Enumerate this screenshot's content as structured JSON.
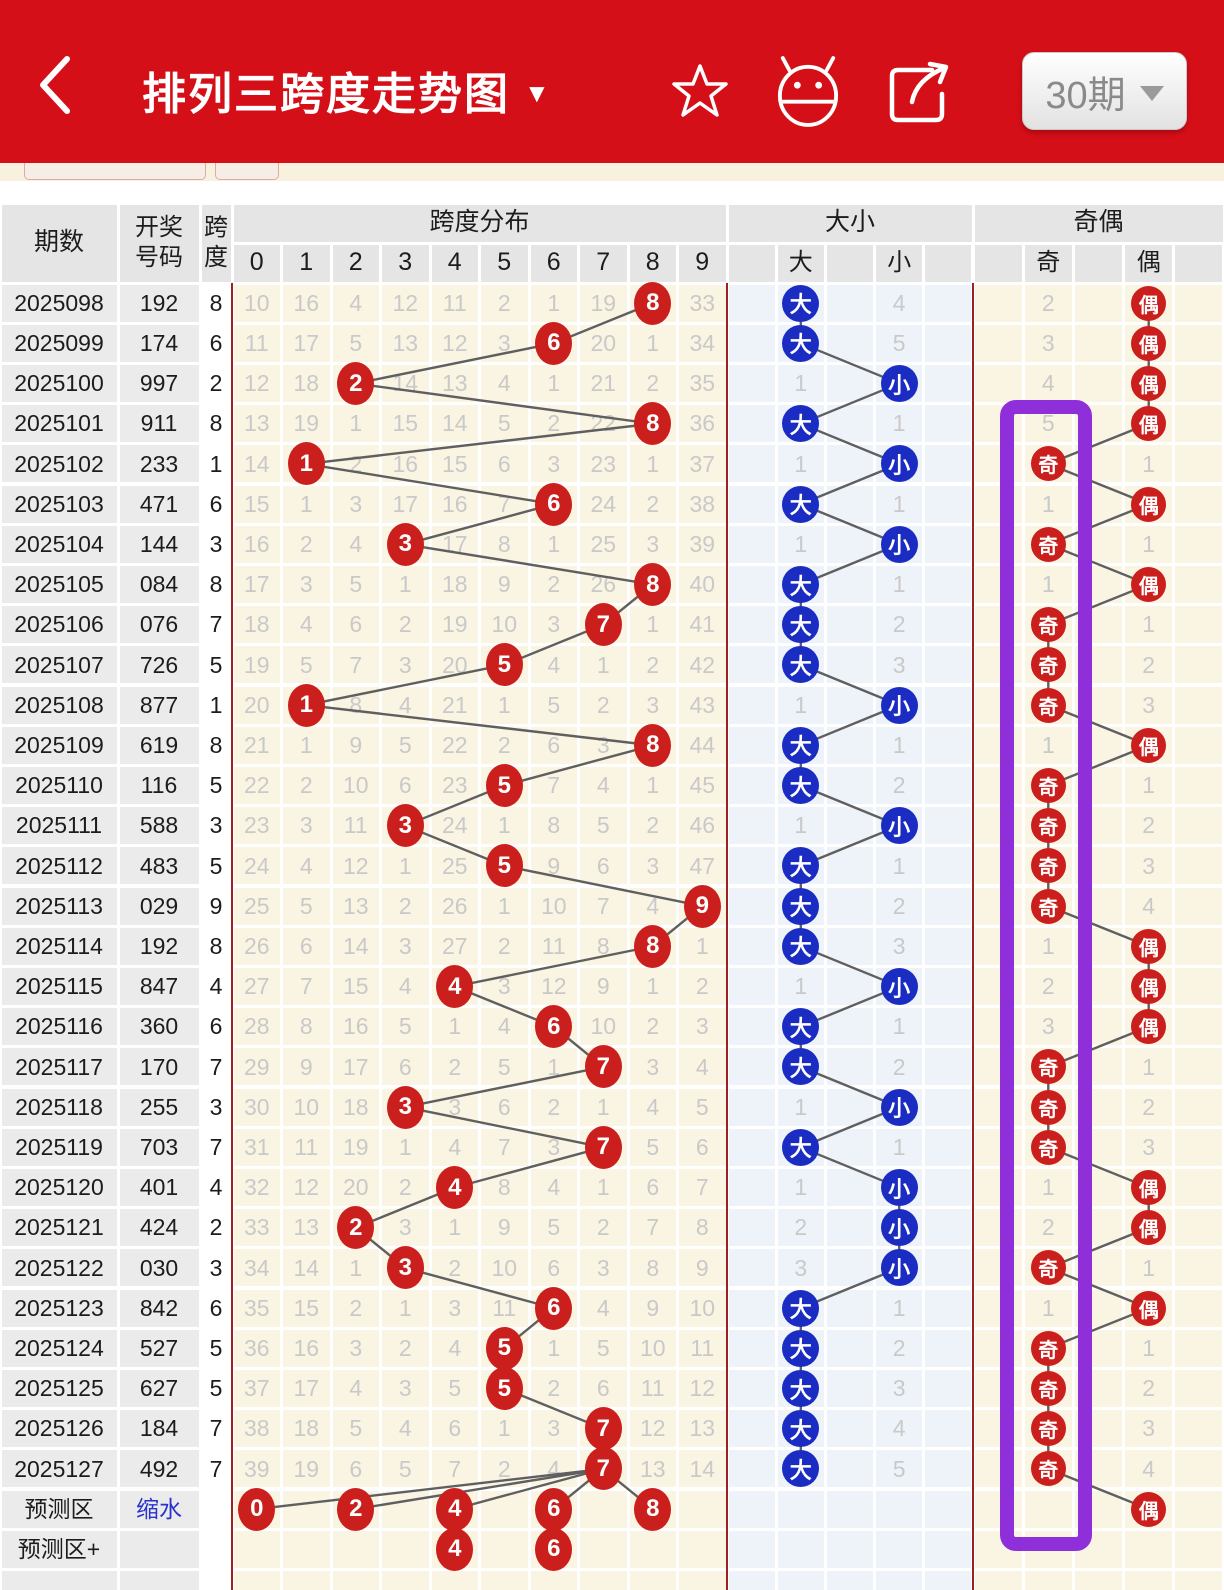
{
  "header": {
    "title": "排列三跨度走势图",
    "title_caret": "▼",
    "periods_button": {
      "label": "30期"
    },
    "icons": [
      "back-icon",
      "favorite-star-icon",
      "android-icon",
      "share-icon"
    ]
  },
  "table_header": {
    "period": "期数",
    "number_lines": [
      "开奖",
      "号码"
    ],
    "span_lines": [
      "跨",
      "度"
    ],
    "dist_group": "跨度分布",
    "size_group": "大小",
    "parity_group": "奇偶",
    "dist_labels": [
      "0",
      "1",
      "2",
      "3",
      "4",
      "5",
      "6",
      "7",
      "8",
      "9"
    ],
    "size_labels": [
      "",
      "大",
      "",
      "小",
      ""
    ],
    "parity_labels": [
      "",
      "奇",
      "",
      "偶",
      ""
    ]
  },
  "rows": [
    {
      "period": "2025098",
      "number": "192",
      "span": 8,
      "dist": [
        10,
        16,
        4,
        12,
        11,
        2,
        1,
        19,
        8,
        33
      ],
      "size_hit": "big",
      "size_miss": 4,
      "parity_hit": "even",
      "parity_miss": 2
    },
    {
      "period": "2025099",
      "number": "174",
      "span": 6,
      "dist": [
        11,
        17,
        5,
        13,
        12,
        3,
        6,
        20,
        1,
        34
      ],
      "size_hit": "big",
      "size_miss": 5,
      "parity_hit": "even",
      "parity_miss": 3
    },
    {
      "period": "2025100",
      "number": "997",
      "span": 2,
      "dist": [
        12,
        18,
        2,
        14,
        13,
        4,
        1,
        21,
        2,
        35
      ],
      "size_hit": "small",
      "size_miss": 1,
      "parity_hit": "even",
      "parity_miss": 4
    },
    {
      "period": "2025101",
      "number": "911",
      "span": 8,
      "dist": [
        13,
        19,
        1,
        15,
        14,
        5,
        2,
        22,
        8,
        36
      ],
      "size_hit": "big",
      "size_miss": 1,
      "parity_hit": "even",
      "parity_miss": 5
    },
    {
      "period": "2025102",
      "number": "233",
      "span": 1,
      "dist": [
        14,
        1,
        2,
        16,
        15,
        6,
        3,
        23,
        1,
        37
      ],
      "size_hit": "small",
      "size_miss": 1,
      "parity_hit": "odd",
      "parity_miss": 1
    },
    {
      "period": "2025103",
      "number": "471",
      "span": 6,
      "dist": [
        15,
        1,
        3,
        17,
        16,
        7,
        6,
        24,
        2,
        38
      ],
      "size_hit": "big",
      "size_miss": 1,
      "parity_hit": "even",
      "parity_miss": 1
    },
    {
      "period": "2025104",
      "number": "144",
      "span": 3,
      "dist": [
        16,
        2,
        4,
        3,
        17,
        8,
        1,
        25,
        3,
        39
      ],
      "size_hit": "small",
      "size_miss": 1,
      "parity_hit": "odd",
      "parity_miss": 1
    },
    {
      "period": "2025105",
      "number": "084",
      "span": 8,
      "dist": [
        17,
        3,
        5,
        1,
        18,
        9,
        2,
        26,
        8,
        40
      ],
      "size_hit": "big",
      "size_miss": 1,
      "parity_hit": "even",
      "parity_miss": 1
    },
    {
      "period": "2025106",
      "number": "076",
      "span": 7,
      "dist": [
        18,
        4,
        6,
        2,
        19,
        10,
        3,
        7,
        1,
        41
      ],
      "size_hit": "big",
      "size_miss": 2,
      "parity_hit": "odd",
      "parity_miss": 1
    },
    {
      "period": "2025107",
      "number": "726",
      "span": 5,
      "dist": [
        19,
        5,
        7,
        3,
        20,
        5,
        4,
        1,
        2,
        42
      ],
      "size_hit": "big",
      "size_miss": 3,
      "parity_hit": "odd",
      "parity_miss": 2
    },
    {
      "period": "2025108",
      "number": "877",
      "span": 1,
      "dist": [
        20,
        1,
        8,
        4,
        21,
        1,
        5,
        2,
        3,
        43
      ],
      "size_hit": "small",
      "size_miss": 1,
      "parity_hit": "odd",
      "parity_miss": 3
    },
    {
      "period": "2025109",
      "number": "619",
      "span": 8,
      "dist": [
        21,
        1,
        9,
        5,
        22,
        2,
        6,
        3,
        8,
        44
      ],
      "size_hit": "big",
      "size_miss": 1,
      "parity_hit": "even",
      "parity_miss": 1
    },
    {
      "period": "2025110",
      "number": "116",
      "span": 5,
      "dist": [
        22,
        2,
        10,
        6,
        23,
        5,
        7,
        4,
        1,
        45
      ],
      "size_hit": "big",
      "size_miss": 2,
      "parity_hit": "odd",
      "parity_miss": 1
    },
    {
      "period": "2025111",
      "number": "588",
      "span": 3,
      "dist": [
        23,
        3,
        11,
        3,
        24,
        1,
        8,
        5,
        2,
        46
      ],
      "size_hit": "small",
      "size_miss": 1,
      "parity_hit": "odd",
      "parity_miss": 2
    },
    {
      "period": "2025112",
      "number": "483",
      "span": 5,
      "dist": [
        24,
        4,
        12,
        1,
        25,
        5,
        9,
        6,
        3,
        47
      ],
      "size_hit": "big",
      "size_miss": 1,
      "parity_hit": "odd",
      "parity_miss": 3
    },
    {
      "period": "2025113",
      "number": "029",
      "span": 9,
      "dist": [
        25,
        5,
        13,
        2,
        26,
        1,
        10,
        7,
        4,
        9
      ],
      "size_hit": "big",
      "size_miss": 2,
      "parity_hit": "odd",
      "parity_miss": 4
    },
    {
      "period": "2025114",
      "number": "192",
      "span": 8,
      "dist": [
        26,
        6,
        14,
        3,
        27,
        2,
        11,
        8,
        8,
        1
      ],
      "size_hit": "big",
      "size_miss": 3,
      "parity_hit": "even",
      "parity_miss": 1
    },
    {
      "period": "2025115",
      "number": "847",
      "span": 4,
      "dist": [
        27,
        7,
        15,
        4,
        4,
        3,
        12,
        9,
        1,
        2
      ],
      "size_hit": "small",
      "size_miss": 1,
      "parity_hit": "even",
      "parity_miss": 2
    },
    {
      "period": "2025116",
      "number": "360",
      "span": 6,
      "dist": [
        28,
        8,
        16,
        5,
        1,
        4,
        6,
        10,
        2,
        3
      ],
      "size_hit": "big",
      "size_miss": 1,
      "parity_hit": "even",
      "parity_miss": 3
    },
    {
      "period": "2025117",
      "number": "170",
      "span": 7,
      "dist": [
        29,
        9,
        17,
        6,
        2,
        5,
        1,
        7,
        3,
        4
      ],
      "size_hit": "big",
      "size_miss": 2,
      "parity_hit": "odd",
      "parity_miss": 1
    },
    {
      "period": "2025118",
      "number": "255",
      "span": 3,
      "dist": [
        30,
        10,
        18,
        3,
        3,
        6,
        2,
        1,
        4,
        5
      ],
      "size_hit": "small",
      "size_miss": 1,
      "parity_hit": "odd",
      "parity_miss": 2
    },
    {
      "period": "2025119",
      "number": "703",
      "span": 7,
      "dist": [
        31,
        11,
        19,
        1,
        4,
        7,
        3,
        7,
        5,
        6
      ],
      "size_hit": "big",
      "size_miss": 1,
      "parity_hit": "odd",
      "parity_miss": 3
    },
    {
      "period": "2025120",
      "number": "401",
      "span": 4,
      "dist": [
        32,
        12,
        20,
        2,
        4,
        8,
        4,
        1,
        6,
        7
      ],
      "size_hit": "small",
      "size_miss": 1,
      "parity_hit": "even",
      "parity_miss": 1
    },
    {
      "period": "2025121",
      "number": "424",
      "span": 2,
      "dist": [
        33,
        13,
        2,
        3,
        1,
        9,
        5,
        2,
        7,
        8
      ],
      "size_hit": "small",
      "size_miss": 2,
      "parity_hit": "even",
      "parity_miss": 2
    },
    {
      "period": "2025122",
      "number": "030",
      "span": 3,
      "dist": [
        34,
        14,
        1,
        3,
        2,
        10,
        6,
        3,
        8,
        9
      ],
      "size_hit": "small",
      "size_miss": 3,
      "parity_hit": "odd",
      "parity_miss": 1
    },
    {
      "period": "2025123",
      "number": "842",
      "span": 6,
      "dist": [
        35,
        15,
        2,
        1,
        3,
        11,
        6,
        4,
        9,
        10
      ],
      "size_hit": "big",
      "size_miss": 1,
      "parity_hit": "even",
      "parity_miss": 1
    },
    {
      "period": "2025124",
      "number": "527",
      "span": 5,
      "dist": [
        36,
        16,
        3,
        2,
        4,
        5,
        1,
        5,
        10,
        11
      ],
      "size_hit": "big",
      "size_miss": 2,
      "parity_hit": "odd",
      "parity_miss": 1
    },
    {
      "period": "2025125",
      "number": "627",
      "span": 5,
      "dist": [
        37,
        17,
        4,
        3,
        5,
        5,
        2,
        6,
        11,
        12
      ],
      "size_hit": "big",
      "size_miss": 3,
      "parity_hit": "odd",
      "parity_miss": 2
    },
    {
      "period": "2025126",
      "number": "184",
      "span": 7,
      "dist": [
        38,
        18,
        5,
        4,
        6,
        1,
        3,
        7,
        12,
        13
      ],
      "size_hit": "big",
      "size_miss": 4,
      "parity_hit": "odd",
      "parity_miss": 3
    },
    {
      "period": "2025127",
      "number": "492",
      "span": 7,
      "dist": [
        39,
        19,
        6,
        5,
        7,
        2,
        4,
        7,
        13,
        14
      ],
      "size_hit": "big",
      "size_miss": 5,
      "parity_hit": "odd",
      "parity_miss": 4
    }
  ],
  "prediction": {
    "label": "预测区",
    "note": "缩水",
    "span_values": [
      0,
      2,
      4,
      6,
      8
    ],
    "parity_value": "偶"
  },
  "prediction_plus": {
    "label": "预测区+",
    "span_values": [
      4,
      6
    ]
  },
  "size_glyphs": {
    "big": "大",
    "small": "小"
  },
  "parity_glyphs": {
    "odd": "奇",
    "even": "偶"
  },
  "colors": {
    "app_red": "#d40f18",
    "circle_red": "#cb1f1d",
    "circle_blue": "#1b2cc2",
    "highlight_purple": "#8e2fd9",
    "cream_cell": "#faf4e3",
    "pale_blue_cell": "#eef3fa",
    "label_gray_cell": "#ebebeb",
    "header_gray_cell": "#e5e5e5",
    "faint_text": "#c9c9c9",
    "dark_text": "#1c1c1c",
    "link_blue": "#2933cc",
    "line_gray": "#5f5f5f",
    "separator_red": "#9b2222"
  }
}
